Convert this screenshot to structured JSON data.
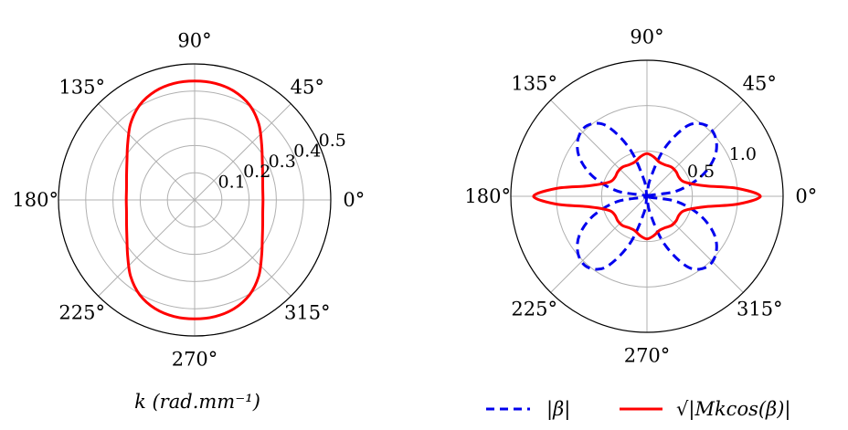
{
  "chart_data": [
    {
      "type": "polar-line",
      "angle_tick_labels": [
        "0°",
        "45°",
        "90°",
        "135°",
        "180°",
        "225°",
        "270°",
        "315°"
      ],
      "angle_tick_values_deg": [
        0,
        45,
        90,
        135,
        180,
        225,
        270,
        315
      ],
      "r_tick_labels": [
        "0.1",
        "0.2",
        "0.3",
        "0.4",
        "0.5"
      ],
      "r_tick_values": [
        0.1,
        0.2,
        0.3,
        0.4,
        0.5
      ],
      "r_label_angle_deg": 22.5,
      "rlim": [
        0,
        0.5
      ],
      "grid": true,
      "xlabel": "k (rad.mm⁻¹)",
      "series": [
        {
          "color": "#ff0000",
          "style": "solid",
          "theta_deg": [
            0,
            10,
            20,
            30,
            40,
            50,
            60,
            70,
            80,
            90,
            100,
            110,
            120,
            130,
            140,
            150,
            160,
            170,
            180,
            190,
            200,
            210,
            220,
            230,
            240,
            250,
            260,
            270,
            280,
            290,
            300,
            310,
            320,
            330,
            340,
            350
          ],
          "r": [
            0.251,
            0.254,
            0.266,
            0.287,
            0.321,
            0.366,
            0.403,
            0.425,
            0.435,
            0.437,
            0.435,
            0.425,
            0.403,
            0.366,
            0.321,
            0.287,
            0.266,
            0.254,
            0.251,
            0.254,
            0.266,
            0.287,
            0.321,
            0.366,
            0.403,
            0.425,
            0.435,
            0.437,
            0.435,
            0.425,
            0.403,
            0.366,
            0.321,
            0.287,
            0.266,
            0.254
          ]
        }
      ]
    },
    {
      "type": "polar-line",
      "angle_tick_labels": [
        "0°",
        "45°",
        "90°",
        "135°",
        "180°",
        "225°",
        "270°",
        "315°"
      ],
      "angle_tick_values_deg": [
        0,
        45,
        90,
        135,
        180,
        225,
        270,
        315
      ],
      "r_tick_labels": [
        "0.5",
        "1.0"
      ],
      "r_tick_values": [
        0.5,
        1.0
      ],
      "r_label_angle_deg": 22.5,
      "rlim": [
        0,
        1.5
      ],
      "grid": true,
      "legend": "bottom",
      "series": [
        {
          "name": "|β|",
          "color": "#0000ee",
          "style": "dashed",
          "theta_deg": [
            0,
            10,
            20,
            30,
            40,
            50,
            60,
            70,
            80,
            90,
            100,
            110,
            120,
            130,
            140,
            150,
            160,
            170,
            180,
            190,
            200,
            210,
            220,
            230,
            240,
            250,
            260,
            270,
            280,
            290,
            300,
            310,
            320,
            330,
            340,
            350
          ],
          "r": [
            0.0,
            0.33,
            0.63,
            0.86,
            0.99,
            1.02,
            0.9,
            0.56,
            0.18,
            0.0,
            0.18,
            0.56,
            0.9,
            1.02,
            0.99,
            0.86,
            0.63,
            0.33,
            0.0,
            0.33,
            0.63,
            0.86,
            0.99,
            1.02,
            0.9,
            0.56,
            0.18,
            0.0,
            0.18,
            0.56,
            0.9,
            1.02,
            0.99,
            0.86,
            0.63,
            0.33
          ]
        },
        {
          "name": "√|Mkcos(β)|",
          "color": "#ff0000",
          "style": "solid",
          "theta_deg": [
            0,
            5,
            10,
            20,
            30,
            40,
            50,
            60,
            70,
            80,
            90,
            100,
            110,
            120,
            130,
            140,
            150,
            160,
            170,
            175,
            180,
            185,
            190,
            200,
            210,
            220,
            230,
            240,
            250,
            260,
            270,
            280,
            290,
            300,
            310,
            320,
            330,
            340,
            350,
            355
          ],
          "r": [
            1.25,
            1.0,
            0.66,
            0.45,
            0.41,
            0.42,
            0.42,
            0.4,
            0.4,
            0.44,
            0.47,
            0.44,
            0.4,
            0.4,
            0.42,
            0.42,
            0.41,
            0.45,
            0.66,
            1.0,
            1.25,
            1.0,
            0.66,
            0.45,
            0.41,
            0.42,
            0.42,
            0.4,
            0.4,
            0.44,
            0.47,
            0.44,
            0.4,
            0.4,
            0.42,
            0.42,
            0.41,
            0.45,
            0.66,
            1.0
          ]
        }
      ]
    }
  ]
}
